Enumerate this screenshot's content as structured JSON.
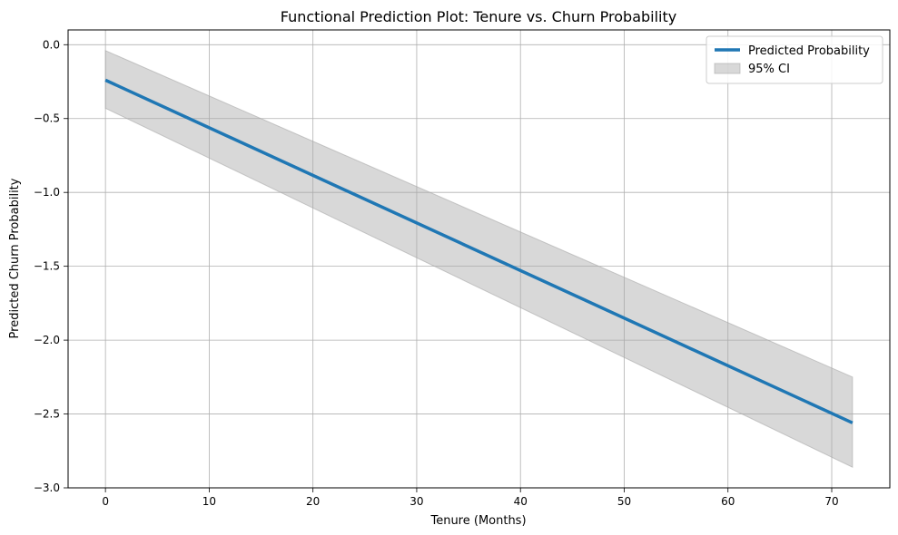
{
  "chart_data": {
    "type": "line",
    "title": "Functional Prediction Plot: Tenure vs. Churn Probability",
    "xlabel": "Tenure (Months)",
    "ylabel": "Predicted Churn Probability",
    "xlim": [
      -3.6,
      75.6
    ],
    "ylim": [
      -3.0,
      0.1
    ],
    "xticks": [
      0,
      10,
      20,
      30,
      40,
      50,
      60,
      70
    ],
    "xtick_labels": [
      "0",
      "10",
      "20",
      "30",
      "40",
      "50",
      "60",
      "70"
    ],
    "yticks": [
      0.0,
      -0.5,
      -1.0,
      -1.5,
      -2.0,
      -2.5,
      -3.0
    ],
    "ytick_labels": [
      "0.0",
      "−0.5",
      "−1.0",
      "−1.5",
      "−2.0",
      "−2.5",
      "−3.0"
    ],
    "grid": true,
    "legend_position": "top-right",
    "series": [
      {
        "name": "Predicted Probability",
        "kind": "line",
        "color": "#1f77b4",
        "x": [
          0,
          72
        ],
        "y": [
          -0.24,
          -2.56
        ]
      },
      {
        "name": "95% CI",
        "kind": "band",
        "color": "#a9a9a9",
        "x": [
          0,
          72
        ],
        "lower": [
          -0.43,
          -2.86
        ],
        "upper": [
          -0.04,
          -2.25
        ]
      }
    ]
  }
}
